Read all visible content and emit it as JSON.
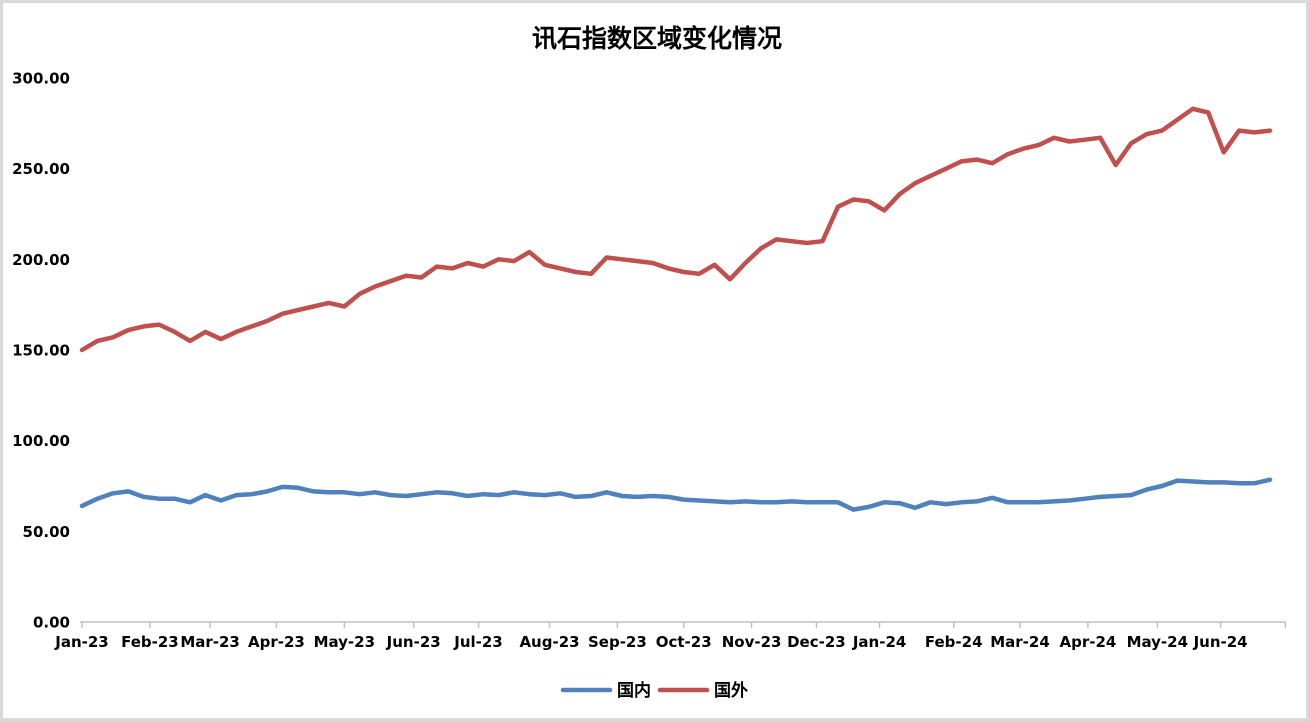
{
  "title": "讯石指数区域变化情况",
  "style": {
    "background": "#FFFFFF",
    "border_color": "#D9D9D9",
    "axis_color": "#BFBFBF",
    "text_color": "#000000",
    "series_blue": "#4F81BD",
    "series_red": "#C0504D"
  },
  "legend": {
    "position": "bottom",
    "items": [
      {
        "label": "国内",
        "color": "#4F81BD"
      },
      {
        "label": "国外",
        "color": "#C0504D"
      }
    ]
  },
  "chart_data": {
    "type": "line",
    "title": "讯石指数区域变化情况",
    "xlabel": "",
    "ylabel": "",
    "ylim": [
      0,
      300
    ],
    "grid": false,
    "legend_position": "bottom",
    "x_unit": "weekly points, Jan-2023 to Jun-2024",
    "y_ticks": [
      {
        "value": 0,
        "label": "0.00"
      },
      {
        "value": 50,
        "label": "50.00"
      },
      {
        "value": 100,
        "label": "100.00"
      },
      {
        "value": 150,
        "label": "150.00"
      },
      {
        "value": 200,
        "label": "200.00"
      },
      {
        "value": 250,
        "label": "250.00"
      },
      {
        "value": 300,
        "label": "300.00"
      }
    ],
    "x_ticks": [
      {
        "label": "Jan-23",
        "week": 1
      },
      {
        "label": "Feb-23",
        "week": 5.4
      },
      {
        "label": "Mar-23",
        "week": 9.3
      },
      {
        "label": "Apr-23",
        "week": 13.6
      },
      {
        "label": "May-23",
        "week": 18
      },
      {
        "label": "Jun-23",
        "week": 22.5
      },
      {
        "label": "Jul-23",
        "week": 26.7
      },
      {
        "label": "Aug-23",
        "week": 31.3
      },
      {
        "label": "Sep-23",
        "week": 35.7
      },
      {
        "label": "Oct-23",
        "week": 40
      },
      {
        "label": "Nov-23",
        "week": 44.4
      },
      {
        "label": "Dec-23",
        "week": 48.6
      },
      {
        "label": "Jan-24",
        "week": 52.7
      },
      {
        "label": "Feb-24",
        "week": 57.5
      },
      {
        "label": "Mar-24",
        "week": 61.8
      },
      {
        "label": "Apr-24",
        "week": 66.2
      },
      {
        "label": "May-24",
        "week": 70.7
      },
      {
        "label": "Jun-24",
        "week": 74.8
      }
    ],
    "axis_end_week": 79,
    "series": [
      {
        "name": "国内",
        "color": "#4F81BD",
        "values": [
          64,
          68,
          71,
          72,
          69,
          68,
          68,
          66,
          70,
          67,
          70,
          70.5,
          72,
          74.5,
          74,
          72,
          71.5,
          71.5,
          70.5,
          71.5,
          70,
          69.5,
          70.5,
          71.5,
          71,
          69.5,
          70.5,
          70,
          71.5,
          70.5,
          70,
          71,
          69,
          69.5,
          71.5,
          69.5,
          69,
          69.5,
          69,
          67.5,
          67,
          66.5,
          66,
          66.5,
          66,
          66,
          66.5,
          66,
          66,
          66,
          62,
          63.5,
          66,
          65.5,
          63,
          66,
          65,
          66,
          66.5,
          68.5,
          66,
          66,
          66,
          66.5,
          67,
          68,
          69,
          69.5,
          70,
          73,
          75,
          78,
          77.5,
          77,
          77,
          76.5,
          76.5,
          78.5
        ]
      },
      {
        "name": "国外",
        "color": "#C0504D",
        "values": [
          150,
          155,
          157,
          161,
          163,
          164,
          160,
          155,
          160,
          156,
          160,
          163,
          166,
          170,
          172,
          174,
          176,
          174,
          181,
          185,
          188,
          191,
          190,
          196,
          195,
          198,
          196,
          200,
          199,
          204,
          197,
          195,
          193,
          192,
          201,
          200,
          199,
          198,
          195,
          193,
          192,
          197,
          189,
          198,
          206,
          211,
          210,
          209,
          210,
          229,
          233,
          232,
          227,
          236,
          242,
          246,
          250,
          254,
          255,
          253,
          258,
          261,
          263,
          267,
          265,
          266,
          267,
          252,
          264,
          269,
          271,
          277,
          283,
          281,
          259,
          271,
          270,
          271
        ]
      }
    ]
  }
}
